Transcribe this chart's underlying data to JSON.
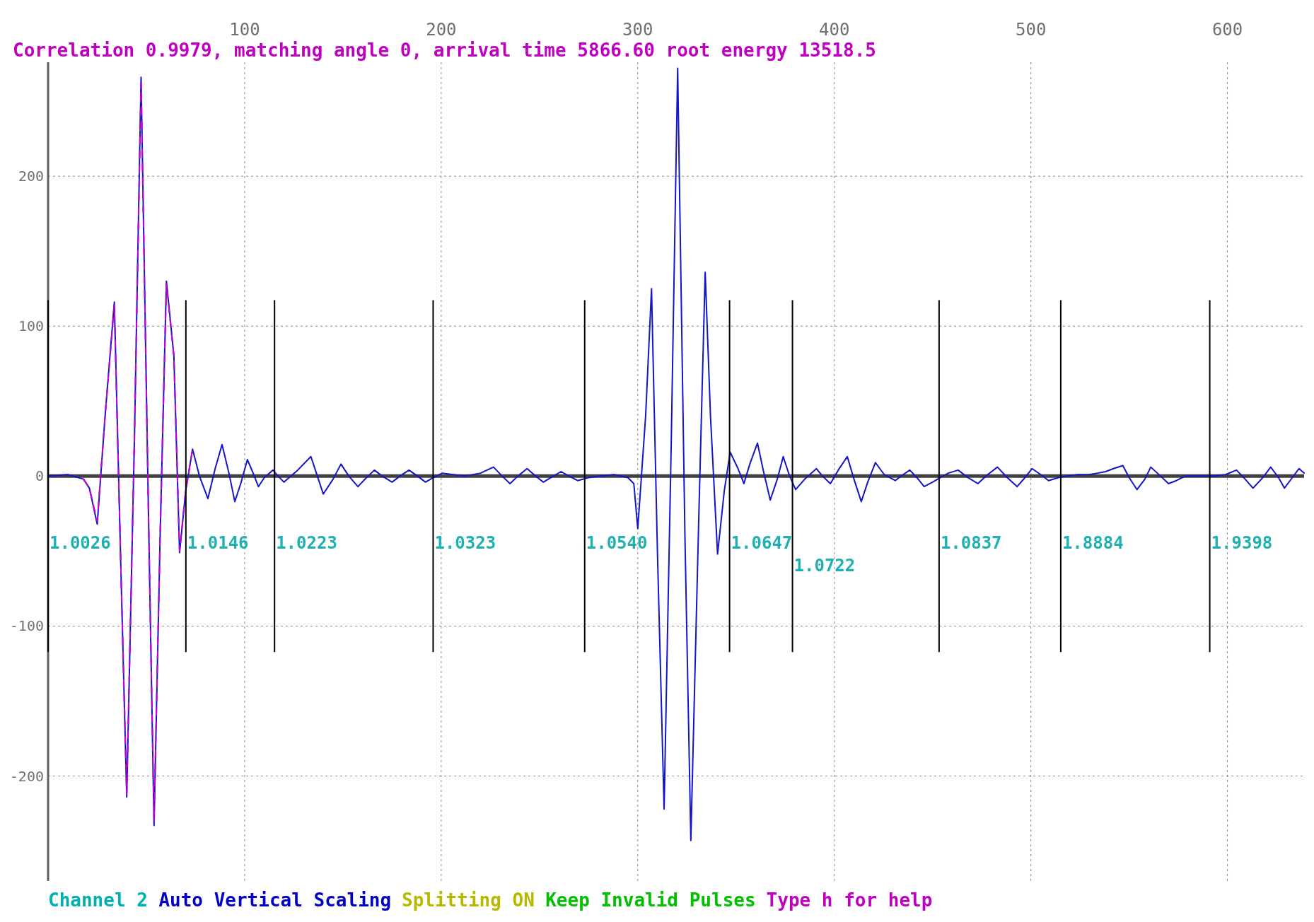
{
  "chart_data": {
    "type": "line",
    "title": "Correlation 0.9979, matching angle 0, arrival time 5866.60 root energy 13518.5",
    "xlim": [
      0,
      639
    ],
    "ylim": [
      -270,
      276
    ],
    "xticks": [
      100,
      200,
      300,
      400,
      500,
      600
    ],
    "yticks": [
      200,
      100,
      0,
      -100,
      -200
    ],
    "grid": true,
    "series": [
      {
        "color": "#1414c8",
        "x": [
          0,
          10,
          18,
          21,
          25,
          29,
          33.7,
          37,
          40,
          44,
          47.3,
          51,
          53.9,
          57,
          60.2,
          64,
          66.9,
          70,
          73.5,
          77,
          81.3,
          85,
          88.5,
          92,
          95,
          98,
          101.4,
          104,
          107,
          110,
          114.4,
          117,
          120,
          127,
          133.7,
          137,
          140,
          145,
          149,
          153,
          157.6,
          162,
          166,
          170,
          175,
          179,
          183.6,
          188,
          192,
          196,
          200.6,
          206,
          212,
          220,
          226.6,
          231,
          235,
          239,
          243.7,
          248,
          252,
          257,
          261,
          265,
          269.4,
          275,
          281,
          288,
          295,
          298,
          300,
          304,
          307,
          310,
          313.4,
          317,
          320.3,
          324,
          327,
          331,
          334.3,
          337,
          340.6,
          344,
          347,
          351,
          354,
          357,
          360.9,
          364,
          367.4,
          371,
          374,
          377,
          380.3,
          385,
          390.9,
          394,
          398,
          402,
          406.6,
          410,
          413.7,
          417,
          420.9,
          425.4,
          431,
          435,
          438.4,
          442,
          445.7,
          450,
          454,
          458,
          463,
          468,
          473,
          478,
          483,
          488,
          493,
          497,
          500.6,
          505,
          509,
          514,
          518,
          524,
          529.5,
          534,
          538,
          542,
          546.8,
          550,
          554,
          558,
          561,
          566,
          570,
          574,
          578.6,
          586,
          593,
          599,
          604.6,
          609,
          613,
          618,
          622,
          626,
          629,
          633,
          636.4,
          639
        ],
        "values": [
          0,
          1,
          -2,
          -8,
          -32,
          40,
          116,
          -60,
          -214,
          30,
          266,
          -20,
          -233,
          -40,
          130,
          80,
          -51,
          -10,
          18,
          0,
          -15,
          5,
          21,
          2,
          -17,
          -5,
          11,
          3,
          -7,
          -1,
          4,
          0,
          -4,
          4,
          13,
          0,
          -12,
          -2,
          8,
          0,
          -7,
          -1,
          4,
          0,
          -4,
          0,
          4,
          0,
          -4,
          -1,
          2,
          1,
          0,
          2,
          6,
          0,
          -5,
          0,
          5,
          0,
          -4,
          0,
          3,
          0,
          -3,
          -1,
          0,
          1,
          -1,
          -5,
          -35,
          40,
          125,
          -50,
          -222,
          20,
          272,
          -40,
          -243,
          -30,
          136,
          40,
          -52,
          -10,
          16,
          5,
          -5,
          8,
          22,
          3,
          -16,
          -2,
          13,
          1,
          -9,
          -2,
          5,
          0,
          -5,
          4,
          13,
          -2,
          -17,
          -4,
          9,
          1,
          -3,
          1,
          4,
          -1,
          -7,
          -4,
          -1,
          2,
          4,
          -1,
          -5,
          1,
          6,
          -1,
          -7,
          -1,
          5,
          1,
          -3,
          -1,
          0,
          1,
          1,
          2,
          3,
          5,
          7,
          -1,
          -9,
          -2,
          6,
          0,
          -5,
          -3,
          0,
          0,
          0,
          1,
          4,
          -2,
          -8,
          -1,
          6,
          -1,
          -8,
          -1,
          5,
          2
        ]
      },
      {
        "color": "#c800c8",
        "line_style": "dashed",
        "x": [
          18,
          21,
          25,
          29,
          33.7,
          37,
          40,
          44,
          47.3,
          51,
          53.9,
          57,
          60.2,
          64,
          66.9,
          70,
          73.5
        ],
        "values": [
          -2,
          -8,
          -30,
          40,
          114,
          -60,
          -212,
          30,
          262,
          -20,
          -230,
          -40,
          128,
          80,
          -50,
          -10,
          18
        ]
      }
    ],
    "ref_lines": [
      {
        "axis": "y",
        "value": 0,
        "color": "#404040"
      },
      {
        "axis": "x",
        "value": 0,
        "color": "#000000"
      },
      {
        "axis": "x",
        "value": 70.1,
        "color": "#000000"
      },
      {
        "axis": "x",
        "value": 115.2,
        "color": "#000000"
      },
      {
        "axis": "x",
        "value": 195.9,
        "color": "#000000"
      },
      {
        "axis": "x",
        "value": 273,
        "color": "#000000"
      },
      {
        "axis": "x",
        "value": 346.7,
        "color": "#000000"
      },
      {
        "axis": "x",
        "value": 378.7,
        "color": "#000000"
      },
      {
        "axis": "x",
        "value": 453.3,
        "color": "#000000"
      },
      {
        "axis": "x",
        "value": 515.2,
        "color": "#000000"
      },
      {
        "axis": "x",
        "value": 591,
        "color": "#000000"
      }
    ],
    "annotations": [
      "Channel 2",
      "Auto Vertical Scaling",
      "Splitting ON",
      "Keep Invalid Pulses",
      "Type h for help",
      {
        "text": "1.0026",
        "x": 0,
        "y": -40
      },
      {
        "text": "1.0146",
        "x": 70.1,
        "y": -40
      },
      {
        "text": "1.0223",
        "x": 115.2,
        "y": -40
      },
      {
        "text": "1.0323",
        "x": 195.9,
        "y": -40
      },
      {
        "text": "1.0540",
        "x": 273,
        "y": -40
      },
      {
        "text": "1.0647",
        "x": 346.7,
        "y": -40
      },
      {
        "text": "1.0722",
        "x": 378.7,
        "y": -55
      },
      {
        "text": "1.0837",
        "x": 453.3,
        "y": -40
      },
      {
        "text": "1.8884",
        "x": 515.2,
        "y": -40
      },
      {
        "text": "1.9398",
        "x": 591,
        "y": -40
      }
    ]
  }
}
